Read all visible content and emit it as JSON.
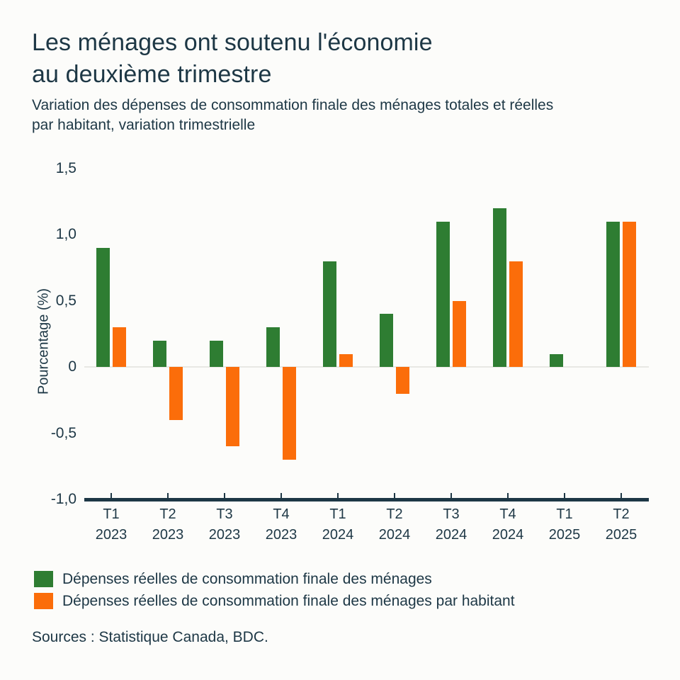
{
  "header": {
    "title_lines": [
      "Les ménages ont soutenu l'économie",
      "au deuxième trimestre"
    ],
    "subtitle_lines": [
      "Variation des dépenses de consommation finale des ménages totales et réelles",
      "par habitant, variation trimestrielle"
    ]
  },
  "chart_data": {
    "type": "bar",
    "title": "Les ménages ont soutenu l'économie au deuxième trimestre",
    "subtitle": "Variation des dépenses de consommation finale des ménages totales et réelles par habitant, variation trimestrielle",
    "ylabel": "Pourcentage (%)",
    "xlabel": "",
    "ylim": [
      -1.0,
      1.5
    ],
    "grid": "zero-line-only",
    "legend_position": "bottom-left",
    "categories": [
      "T1 2023",
      "T2 2023",
      "T3 2023",
      "T4 2023",
      "T1 2024",
      "T2 2024",
      "T3 2024",
      "T4 2024",
      "T1 2025",
      "T2 2025"
    ],
    "y_ticks": [
      {
        "label": "1,5",
        "value": 1.5
      },
      {
        "label": "1,0",
        "value": 1.0
      },
      {
        "label": "0,5",
        "value": 0.5
      },
      {
        "label": "0",
        "value": 0
      },
      {
        "label": "-0,5",
        "value": -0.5
      },
      {
        "label": "-1,0",
        "value": -1.0
      }
    ],
    "series": [
      {
        "name": "Dépenses réelles de consommation finale des ménages",
        "color": "#2e7d32",
        "values": [
          0.9,
          0.2,
          0.2,
          0.3,
          0.8,
          0.4,
          1.1,
          1.2,
          0.1,
          1.1
        ]
      },
      {
        "name": "Dépenses réelles de consommation finale des ménages par habitant",
        "color": "#fb6d0a",
        "values": [
          0.3,
          -0.4,
          -0.6,
          -0.7,
          0.1,
          -0.2,
          0.5,
          0.8,
          0.0,
          1.1
        ]
      }
    ]
  },
  "footer": {
    "source": "Sources : Statistique Canada, BDC."
  },
  "colors": {
    "text": "#1d3745",
    "axis": "#1d3745",
    "zero_line": "#e8e8e4",
    "background": "#fcfcfa"
  }
}
